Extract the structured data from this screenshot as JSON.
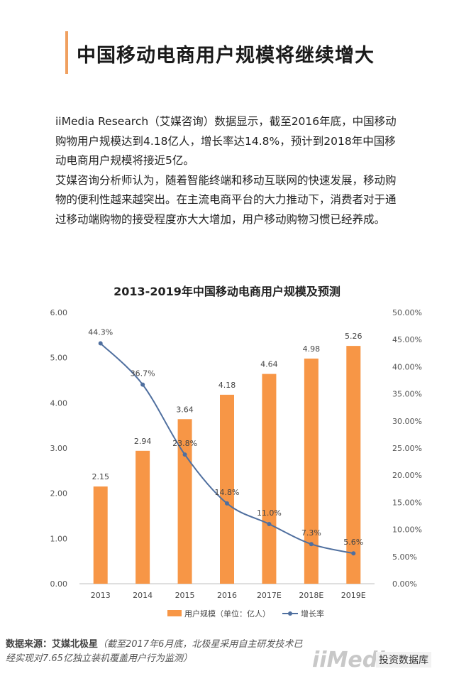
{
  "page_title": "中国移动电商用户规模将继续增大",
  "intro": {
    "p1": "iiMedia Research（艾媒咨询）数据显示，截至2016年底，中国移动购物用户规模达到4.18亿人，增长率达14.8%，预计到2018年中国移动电商用户规模将接近5亿。",
    "p2": "艾媒咨询分析师认为，随着智能终端和移动互联网的快速发展，移动购物的便利性越来越突出。在主流电商平台的大力推动下，消费者对于通过移动端购物的接受程度亦大大增加，用户移动购物习惯已经养成。"
  },
  "source": {
    "label": "数据来源：艾媒北极星",
    "note": "（截至2017年6月底，北极星采用自主研发技术已经实现对7.65亿独立装机覆盖用户行为监测）"
  },
  "logo_text": "iiMedia",
  "account_name": "投资数据库",
  "colors": {
    "bar": "#f79646",
    "line": "#4f6f9f",
    "title_accent": "#f0a060"
  },
  "chart_data": {
    "type": "bar",
    "title": "2013-2019年中国移动电商用户规模及预测",
    "categories": [
      "2013",
      "2014",
      "2015",
      "2016",
      "2017E",
      "2018E",
      "2019E"
    ],
    "series": [
      {
        "name": "用户规模（单位：亿人）",
        "type": "bar",
        "axis": "left",
        "values": [
          2.15,
          2.94,
          3.64,
          4.18,
          4.64,
          4.98,
          5.26
        ],
        "labels": [
          "2.15",
          "2.94",
          "3.64",
          "4.18",
          "4.64",
          "4.98",
          "5.26"
        ]
      },
      {
        "name": "增长率",
        "type": "line",
        "axis": "right",
        "values": [
          44.3,
          36.7,
          23.8,
          14.8,
          11.0,
          7.3,
          5.6
        ],
        "labels": [
          "44.3%",
          "36.7%",
          "23.8%",
          "14.8%",
          "11.0%",
          "7.3%",
          "5.6%"
        ]
      }
    ],
    "y_left": {
      "min": 0,
      "max": 6,
      "ticks": [
        "0.00",
        "1.00",
        "2.00",
        "3.00",
        "4.00",
        "5.00",
        "6.00"
      ]
    },
    "y_right": {
      "min": 0,
      "max": 50,
      "ticks": [
        "0.00%",
        "5.00%",
        "10.00%",
        "15.00%",
        "20.00%",
        "25.00%",
        "30.00%",
        "35.00%",
        "40.00%",
        "45.00%",
        "50.00%"
      ]
    },
    "grid": false,
    "legend": "bottom"
  }
}
